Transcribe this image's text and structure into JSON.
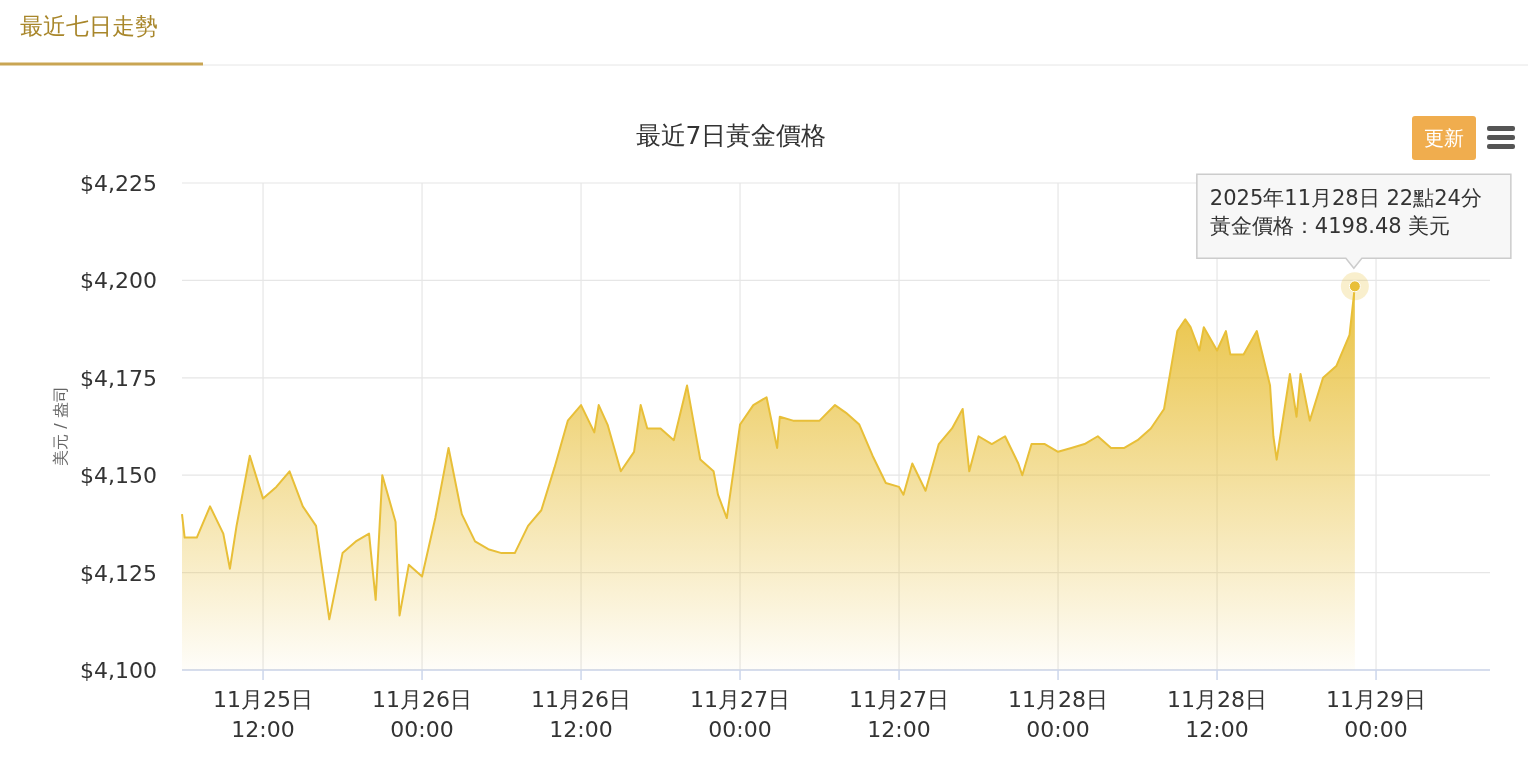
{
  "chart_data": {
    "type": "area",
    "title": "最近7日黃金價格",
    "ylabel": "美元 / 盎司",
    "color": "#e8bf38",
    "x": [
      "2025-11-25T05:53",
      "2025-11-25T06:05",
      "2025-11-25T07:00",
      "2025-11-25T08:00",
      "2025-11-25T09:00",
      "2025-11-25T09:30",
      "2025-11-25T10:00",
      "2025-11-25T11:00",
      "2025-11-25T12:00",
      "2025-11-25T13:00",
      "2025-11-25T14:00",
      "2025-11-25T15:00",
      "2025-11-25T16:00",
      "2025-11-25T17:00",
      "2025-11-25T18:00",
      "2025-11-25T19:00",
      "2025-11-25T20:00",
      "2025-11-25T20:30",
      "2025-11-25T21:00",
      "2025-11-25T22:00",
      "2025-11-25T22:18",
      "2025-11-25T23:00",
      "2025-11-26T00:00",
      "2025-11-26T01:00",
      "2025-11-26T02:00",
      "2025-11-26T03:00",
      "2025-11-26T04:00",
      "2025-11-26T05:00",
      "2025-11-26T06:00",
      "2025-11-26T07:00",
      "2025-11-26T08:00",
      "2025-11-26T09:00",
      "2025-11-26T10:00",
      "2025-11-26T11:00",
      "2025-11-26T12:00",
      "2025-11-26T13:00",
      "2025-11-26T13:20",
      "2025-11-26T14:00",
      "2025-11-26T15:00",
      "2025-11-26T16:00",
      "2025-11-26T16:30",
      "2025-11-26T17:00",
      "2025-11-26T18:00",
      "2025-11-26T19:00",
      "2025-11-26T20:00",
      "2025-11-26T21:00",
      "2025-11-26T22:00",
      "2025-11-26T22:20",
      "2025-11-26T23:00",
      "2025-11-27T00:00",
      "2025-11-27T01:00",
      "2025-11-27T02:00",
      "2025-11-27T02:48",
      "2025-11-27T03:00",
      "2025-11-27T04:00",
      "2025-11-27T05:00",
      "2025-11-27T06:00",
      "2025-11-27T07:10",
      "2025-11-27T08:00",
      "2025-11-27T09:00",
      "2025-11-27T10:00",
      "2025-11-27T11:00",
      "2025-11-27T12:00",
      "2025-11-27T12:20",
      "2025-11-27T13:00",
      "2025-11-27T14:00",
      "2025-11-27T15:00",
      "2025-11-27T16:00",
      "2025-11-27T16:48",
      "2025-11-27T17:18",
      "2025-11-27T18:00",
      "2025-11-27T19:00",
      "2025-11-27T20:00",
      "2025-11-27T21:00",
      "2025-11-27T21:18",
      "2025-11-27T22:00",
      "2025-11-27T23:00",
      "2025-11-28T00:00",
      "2025-11-28T01:00",
      "2025-11-28T02:00",
      "2025-11-28T03:00",
      "2025-11-28T04:00",
      "2025-11-28T05:00",
      "2025-11-28T06:00",
      "2025-11-28T07:00",
      "2025-11-28T08:00",
      "2025-11-28T09:00",
      "2025-11-28T09:36",
      "2025-11-28T10:00",
      "2025-11-28T10:40",
      "2025-11-28T11:00",
      "2025-11-28T12:00",
      "2025-11-28T12:40",
      "2025-11-28T13:00",
      "2025-11-28T14:00",
      "2025-11-28T15:00",
      "2025-11-28T16:00",
      "2025-11-28T16:15",
      "2025-11-28T16:30",
      "2025-11-28T17:00",
      "2025-11-28T17:30",
      "2025-11-28T18:00",
      "2025-11-28T18:18",
      "2025-11-28T19:00",
      "2025-11-28T20:00",
      "2025-11-28T21:00",
      "2025-11-28T22:00",
      "2025-11-28T22:24"
    ],
    "values": [
      4140,
      4134,
      4134,
      4142,
      4135,
      4126,
      4137,
      4155,
      4144,
      4147,
      4151,
      4142,
      4137,
      4113,
      4130,
      4133,
      4135,
      4118,
      4150,
      4138,
      4114,
      4127,
      4124,
      4139,
      4157,
      4140,
      4133,
      4131,
      4130,
      4130,
      4137,
      4141,
      4152,
      4164,
      4168,
      4161,
      4168,
      4163,
      4151,
      4156,
      4168,
      4162,
      4162,
      4159,
      4173,
      4154,
      4151,
      4145,
      4139,
      4163,
      4168,
      4170,
      4157,
      4165,
      4164,
      4164,
      4164,
      4168,
      4166,
      4163,
      4155,
      4148,
      4147,
      4145,
      4153,
      4146,
      4158,
      4162,
      4167,
      4151,
      4160,
      4158,
      4160,
      4153,
      4150,
      4158,
      4158,
      4156,
      4157,
      4158,
      4160,
      4157,
      4157,
      4159,
      4162,
      4167,
      4187,
      4190,
      4188,
      4182,
      4188,
      4182,
      4187,
      4181,
      4181,
      4187,
      4173,
      4160,
      4154,
      4165,
      4176,
      4165,
      4176,
      4164,
      4175,
      4178,
      4186,
      4198.48
    ],
    "xlim": [
      "2025-11-25T05:53",
      "2025-11-29T08:36"
    ],
    "xticks": [
      {
        "value": "2025-11-25T12:00",
        "label": "11月25日\n12:00"
      },
      {
        "value": "2025-11-26T00:00",
        "label": "11月26日\n00:00"
      },
      {
        "value": "2025-11-26T12:00",
        "label": "11月26日\n12:00"
      },
      {
        "value": "2025-11-27T00:00",
        "label": "11月27日\n00:00"
      },
      {
        "value": "2025-11-27T12:00",
        "label": "11月27日\n12:00"
      },
      {
        "value": "2025-11-28T00:00",
        "label": "11月28日\n00:00"
      },
      {
        "value": "2025-11-28T12:00",
        "label": "11月28日\n12:00"
      },
      {
        "value": "2025-11-29T00:00",
        "label": "11月29日\n00:00"
      }
    ],
    "ylim": [
      4100,
      4225
    ],
    "yticks": [
      {
        "value": 4100,
        "label": "$4,100"
      },
      {
        "value": 4125,
        "label": "$4,125"
      },
      {
        "value": 4150,
        "label": "$4,150"
      },
      {
        "value": 4175,
        "label": "$4,175"
      },
      {
        "value": 4200,
        "label": "$4,200"
      },
      {
        "value": 4225,
        "label": "$4,225"
      }
    ],
    "grid": true,
    "annotations": [
      "最近七日走勢",
      "更新",
      "2025年11月28日 22點24分",
      {
        "text": "黃金價格：4198.48 美元",
        "x": "2025-11-28T22:24",
        "y": 4198.48
      }
    ]
  }
}
